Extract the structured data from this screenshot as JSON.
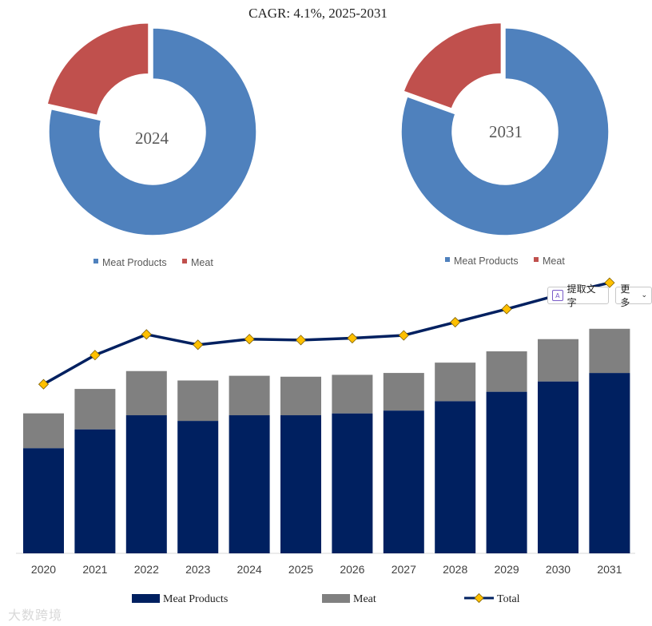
{
  "title": "CAGR:   4.1%, 2025-2031",
  "chart_data": [
    {
      "type": "pie",
      "subtype": "donut",
      "center_label": "2024",
      "labels": [
        "Meat Products",
        "Meat"
      ],
      "values": [
        78.5,
        21.5
      ],
      "colors": [
        "#4f81bd",
        "#c0504d"
      ],
      "legend": [
        "Meat Products",
        "Meat"
      ]
    },
    {
      "type": "pie",
      "subtype": "donut",
      "center_label": "2031",
      "labels": [
        "Meat Products",
        "Meat"
      ],
      "values": [
        80.5,
        19.5
      ],
      "colors": [
        "#4f81bd",
        "#c0504d"
      ],
      "legend": [
        "Meat Products",
        "Meat"
      ]
    },
    {
      "type": "bar",
      "stacked": true,
      "categories": [
        "2020",
        "2021",
        "2022",
        "2023",
        "2024",
        "2025",
        "2026",
        "2027",
        "2028",
        "2029",
        "2030",
        "2031"
      ],
      "series": [
        {
          "name": "Meat Products",
          "color": "#002060",
          "values": [
            112,
            132,
            147,
            141,
            147,
            147,
            149,
            152,
            162,
            172,
            183,
            192
          ]
        },
        {
          "name": "Meat",
          "color": "#808080",
          "values": [
            37,
            43,
            47,
            43,
            42,
            41,
            41,
            40,
            41,
            43,
            45,
            47
          ]
        },
        {
          "name": "Total",
          "type": "line",
          "color": "#002060",
          "marker_color": "#ffc000",
          "values": [
            180,
            211,
            233,
            222,
            228,
            227,
            229,
            232,
            246,
            260,
            275,
            288
          ]
        }
      ],
      "ylim": [
        0,
        300
      ],
      "legend": [
        "Meat Products",
        "Meat",
        "Total"
      ]
    }
  ],
  "toolbar": {
    "extract_label": "提取文字",
    "extract_icon": "A",
    "more_label": "更多"
  },
  "watermark": "大数跨境"
}
